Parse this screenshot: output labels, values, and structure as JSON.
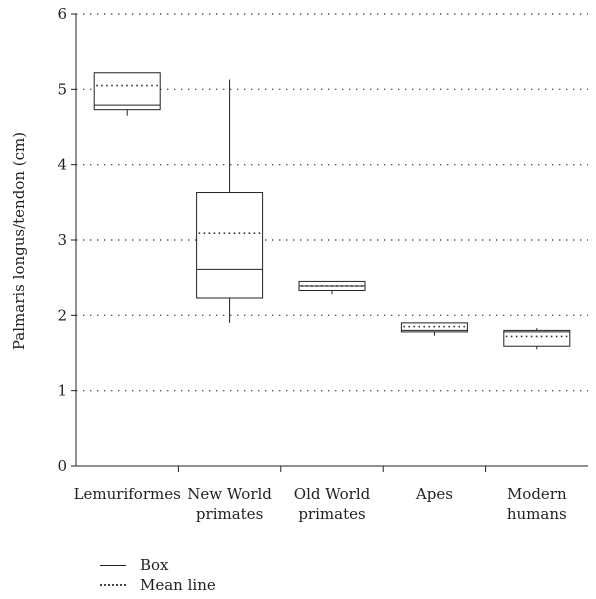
{
  "chart_data": {
    "type": "boxplot",
    "ylabel": "Palmaris longus/tendon (cm)",
    "xlabel": "",
    "ylim": [
      0,
      6
    ],
    "yticks": [
      0,
      1,
      2,
      3,
      4,
      5,
      6
    ],
    "grid": "horizontal-dotted",
    "categories": [
      {
        "label_lines": [
          "Lemuriformes"
        ],
        "whisker_low": 4.65,
        "q1": 4.73,
        "median": 4.79,
        "mean": 5.05,
        "q3": 5.22,
        "whisker_high": 5.22
      },
      {
        "label_lines": [
          "New World",
          "primates"
        ],
        "whisker_low": 1.9,
        "q1": 2.23,
        "median": 2.61,
        "mean": 3.09,
        "q3": 3.63,
        "whisker_high": 5.13
      },
      {
        "label_lines": [
          "Old World",
          "primates"
        ],
        "whisker_low": 2.28,
        "q1": 2.33,
        "median": 2.39,
        "mean": 2.39,
        "q3": 2.45,
        "whisker_high": 2.45
      },
      {
        "label_lines": [
          "Apes"
        ],
        "whisker_low": 1.73,
        "q1": 1.78,
        "median": 1.8,
        "mean": 1.85,
        "q3": 1.9,
        "whisker_high": 1.9
      },
      {
        "label_lines": [
          "Modern",
          "humans"
        ],
        "whisker_low": 1.55,
        "q1": 1.59,
        "median": 1.78,
        "mean": 1.72,
        "q3": 1.8,
        "whisker_high": 1.83
      }
    ],
    "legend": [
      {
        "label": "Box",
        "style": "solid"
      },
      {
        "label": "Mean line",
        "style": "dotted"
      }
    ]
  }
}
